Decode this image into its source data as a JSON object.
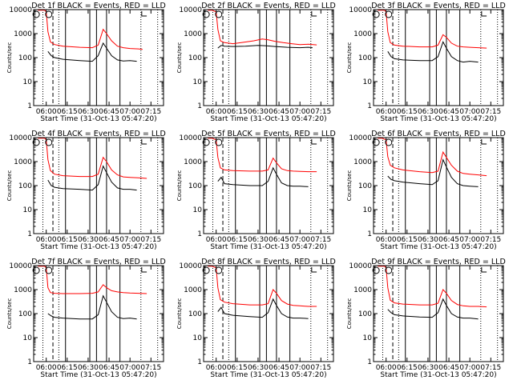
{
  "chart_data": [
    {
      "type": "line",
      "title": "Det 1f BLACK = Events, RED = LLD",
      "xlabel": "Start Time (31-Oct-13 05:47:20)",
      "ylabel": "Counts/sec",
      "x_ticks": [
        "06:00",
        "06:15",
        "06:30",
        "06:45",
        "07:00",
        "07:15"
      ],
      "y_ticks": [
        "1",
        "10",
        "100",
        "1000",
        "10000"
      ],
      "ylim": [
        1,
        10000
      ],
      "y_scale": "log",
      "series": [
        {
          "color": "#ff0000",
          "x": [
            5.9,
            5.98,
            6.0,
            6.02,
            6.05,
            6.1,
            6.2,
            6.4,
            6.55,
            6.62,
            6.68,
            6.72,
            6.78,
            6.85,
            6.92,
            7.0,
            7.1,
            7.15
          ],
          "y": [
            9500,
            9500,
            8000,
            1200,
            450,
            350,
            300,
            270,
            260,
            330,
            1500,
            1000,
            500,
            300,
            260,
            240,
            230,
            220
          ]
        },
        {
          "color": "#000000",
          "x": [
            6.02,
            6.06,
            6.1,
            6.2,
            6.4,
            6.55,
            6.62,
            6.68,
            6.72,
            6.78,
            6.85,
            6.92,
            7.0,
            7.08
          ],
          "y": [
            180,
            120,
            100,
            85,
            75,
            70,
            120,
            400,
            250,
            120,
            80,
            72,
            75,
            70
          ]
        }
      ]
    },
    {
      "type": "line",
      "title": "Det 2f BLACK = Events, RED = LLD",
      "xlabel": "Start Time (31-Oct-13 05:47:20)",
      "ylabel": "Counts/sec",
      "x_ticks": [
        "06:00",
        "06:15",
        "06:30",
        "06:45",
        "07:00",
        "07:15"
      ],
      "y_ticks": [
        "1",
        "10",
        "100",
        "1000",
        "10000"
      ],
      "ylim": [
        1,
        10000
      ],
      "y_scale": "log",
      "series": [
        {
          "color": "#ff0000",
          "x": [
            5.9,
            5.95,
            6.0,
            6.02,
            6.05,
            6.1,
            6.2,
            6.3,
            6.45,
            6.55,
            6.62,
            6.7,
            6.8,
            6.9,
            7.0,
            7.1,
            7.2
          ],
          "y": [
            9500,
            9500,
            8000,
            1500,
            500,
            420,
            380,
            420,
            500,
            600,
            550,
            480,
            420,
            380,
            350,
            360,
            340
          ]
        },
        {
          "color": "#000000",
          "x": [
            6.02,
            6.06,
            6.1,
            6.2,
            6.35,
            6.5,
            6.6,
            6.7,
            6.85,
            7.0,
            7.1,
            7.15
          ],
          "y": [
            250,
            320,
            300,
            290,
            300,
            320,
            310,
            290,
            270,
            260,
            270,
            260
          ]
        }
      ]
    },
    {
      "type": "line",
      "title": "Det 3f BLACK = Events, RED = LLD",
      "xlabel": "Start Time (31-Oct-13 05:47:20)",
      "ylabel": "Counts/sec",
      "x_ticks": [
        "06:00",
        "06:15",
        "06:30",
        "06:45",
        "07:00",
        "07:15"
      ],
      "y_ticks": [
        "1",
        "10",
        "100",
        "1000",
        "10000"
      ],
      "ylim": [
        1,
        10000
      ],
      "y_scale": "log",
      "series": [
        {
          "color": "#ff0000",
          "x": [
            5.9,
            5.98,
            6.0,
            6.02,
            6.05,
            6.1,
            6.2,
            6.4,
            6.55,
            6.62,
            6.68,
            6.72,
            6.78,
            6.85,
            6.92,
            7.0,
            7.1,
            7.2
          ],
          "y": [
            9500,
            9500,
            8000,
            1200,
            420,
            330,
            300,
            280,
            280,
            330,
            900,
            700,
            400,
            300,
            280,
            270,
            260,
            250
          ]
        },
        {
          "color": "#000000",
          "x": [
            6.02,
            6.06,
            6.1,
            6.2,
            6.4,
            6.55,
            6.62,
            6.68,
            6.72,
            6.78,
            6.85,
            6.92,
            7.0,
            7.1
          ],
          "y": [
            180,
            110,
            90,
            80,
            75,
            75,
            110,
            450,
            250,
            110,
            75,
            65,
            70,
            65
          ]
        }
      ]
    },
    {
      "type": "line",
      "title": "Det 4f BLACK = Events, RED = LLD",
      "xlabel": "Start Time (31-Oct-13 05:47:20)",
      "ylabel": "Counts/sec",
      "x_ticks": [
        "06:00",
        "06:15",
        "06:30",
        "06:45",
        "07:00",
        "07:15"
      ],
      "y_ticks": [
        "1",
        "10",
        "100",
        "1000",
        "10000"
      ],
      "ylim": [
        1,
        10000
      ],
      "y_scale": "log",
      "series": [
        {
          "color": "#ff0000",
          "x": [
            5.9,
            5.98,
            6.0,
            6.02,
            6.05,
            6.1,
            6.2,
            6.4,
            6.55,
            6.62,
            6.68,
            6.72,
            6.78,
            6.85,
            6.92,
            7.0,
            7.1,
            7.2
          ],
          "y": [
            9500,
            9500,
            8000,
            1200,
            420,
            300,
            260,
            240,
            240,
            300,
            1500,
            1000,
            450,
            280,
            230,
            220,
            210,
            200
          ]
        },
        {
          "color": "#000000",
          "x": [
            6.02,
            6.06,
            6.1,
            6.2,
            6.4,
            6.55,
            6.62,
            6.68,
            6.72,
            6.78,
            6.85,
            6.92,
            7.0,
            7.08
          ],
          "y": [
            170,
            100,
            85,
            75,
            70,
            65,
            110,
            650,
            350,
            140,
            80,
            70,
            70,
            65
          ]
        }
      ]
    },
    {
      "type": "line",
      "title": "Det 5f BLACK = Events, RED = LLD",
      "xlabel": "Start Time (31-Oct-13 05:47:20)",
      "ylabel": "Counts/sec",
      "x_ticks": [
        "06:00",
        "06:15",
        "06:30",
        "06:45",
        "07:00",
        "07:15"
      ],
      "y_ticks": [
        "1",
        "10",
        "100",
        "1000",
        "10000"
      ],
      "ylim": [
        1,
        10000
      ],
      "y_scale": "log",
      "series": [
        {
          "color": "#ff0000",
          "x": [
            5.9,
            5.95,
            6.0,
            6.02,
            6.05,
            6.1,
            6.2,
            6.4,
            6.55,
            6.62,
            6.68,
            6.72,
            6.78,
            6.85,
            6.92,
            7.0,
            7.1,
            7.2
          ],
          "y": [
            9500,
            9500,
            8000,
            1500,
            550,
            450,
            420,
            400,
            400,
            450,
            1400,
            900,
            500,
            420,
            400,
            390,
            380,
            380
          ]
        },
        {
          "color": "#000000",
          "x": [
            6.02,
            6.06,
            6.1,
            6.2,
            6.4,
            6.55,
            6.62,
            6.68,
            6.72,
            6.78,
            6.85,
            6.92,
            7.0,
            7.1
          ],
          "y": [
            150,
            220,
            120,
            110,
            100,
            100,
            150,
            550,
            300,
            130,
            100,
            95,
            95,
            90
          ]
        }
      ]
    },
    {
      "type": "line",
      "title": "Det 6f BLACK = Events, RED = LLD",
      "xlabel": "Start Time (31-Oct-13 05:47:20)",
      "ylabel": "Counts/sec",
      "x_ticks": [
        "06:00",
        "06:15",
        "06:30",
        "06:45",
        "07:00",
        "07:15"
      ],
      "y_ticks": [
        "1",
        "10",
        "100",
        "1000",
        "10000"
      ],
      "ylim": [
        1,
        10000
      ],
      "y_scale": "log",
      "series": [
        {
          "color": "#ff0000",
          "x": [
            5.9,
            5.95,
            6.0,
            6.02,
            6.05,
            6.1,
            6.2,
            6.4,
            6.55,
            6.62,
            6.68,
            6.72,
            6.78,
            6.85,
            6.92,
            7.0,
            7.1,
            7.2
          ],
          "y": [
            9500,
            9500,
            8000,
            1600,
            700,
            550,
            450,
            380,
            350,
            400,
            2500,
            1500,
            700,
            400,
            320,
            300,
            280,
            260
          ]
        },
        {
          "color": "#000000",
          "x": [
            6.02,
            6.06,
            6.1,
            6.2,
            6.4,
            6.55,
            6.62,
            6.68,
            6.72,
            6.78,
            6.85,
            6.92,
            7.0,
            7.1
          ],
          "y": [
            250,
            180,
            160,
            140,
            120,
            110,
            160,
            1200,
            600,
            220,
            120,
            100,
            95,
            90
          ]
        }
      ]
    },
    {
      "type": "line",
      "title": "Det 7f BLACK = Events, RED = LLD",
      "xlabel": "Start Time (31-Oct-13 05:47:20)",
      "ylabel": "Counts/sec",
      "x_ticks": [
        "06:00",
        "06:15",
        "06:30",
        "06:45",
        "07:00",
        "07:15"
      ],
      "y_ticks": [
        "1",
        "10",
        "100",
        "1000",
        "10000"
      ],
      "ylim": [
        1,
        10000
      ],
      "y_scale": "log",
      "series": [
        {
          "color": "#ff0000",
          "x": [
            5.9,
            5.98,
            6.0,
            6.02,
            6.05,
            6.1,
            6.2,
            6.4,
            6.55,
            6.62,
            6.68,
            6.72,
            6.78,
            6.85,
            6.92,
            7.0,
            7.1,
            7.2
          ],
          "y": [
            9500,
            9500,
            8000,
            1200,
            750,
            700,
            680,
            680,
            700,
            800,
            1600,
            1200,
            900,
            800,
            750,
            720,
            700,
            680
          ]
        },
        {
          "color": "#000000",
          "x": [
            6.02,
            6.06,
            6.1,
            6.2,
            6.4,
            6.55,
            6.62,
            6.68,
            6.72,
            6.78,
            6.85,
            6.92,
            7.0,
            7.08
          ],
          "y": [
            100,
            80,
            70,
            65,
            60,
            60,
            90,
            550,
            300,
            120,
            70,
            62,
            65,
            60
          ]
        }
      ]
    },
    {
      "type": "line",
      "title": "Det 8f BLACK = Events, RED = LLD",
      "xlabel": "Start Time (31-Oct-13 05:47:20)",
      "ylabel": "Counts/sec",
      "x_ticks": [
        "06:00",
        "06:15",
        "06:30",
        "06:45",
        "07:00",
        "07:15"
      ],
      "y_ticks": [
        "1",
        "10",
        "100",
        "1000",
        "10000"
      ],
      "ylim": [
        1,
        10000
      ],
      "y_scale": "log",
      "series": [
        {
          "color": "#ff0000",
          "x": [
            5.9,
            5.95,
            6.0,
            6.02,
            6.05,
            6.1,
            6.2,
            6.4,
            6.55,
            6.62,
            6.68,
            6.72,
            6.78,
            6.85,
            6.92,
            7.0,
            7.1,
            7.2
          ],
          "y": [
            9500,
            9500,
            8000,
            1200,
            380,
            300,
            260,
            230,
            230,
            260,
            1000,
            700,
            350,
            250,
            220,
            210,
            200,
            200
          ]
        },
        {
          "color": "#000000",
          "x": [
            6.02,
            6.06,
            6.1,
            6.2,
            6.4,
            6.55,
            6.62,
            6.68,
            6.72,
            6.78,
            6.85,
            6.92,
            7.0,
            7.1
          ],
          "y": [
            120,
            180,
            100,
            85,
            75,
            70,
            110,
            400,
            220,
            100,
            72,
            65,
            65,
            62
          ]
        }
      ]
    },
    {
      "type": "line",
      "title": "Det 9f BLACK = Events, RED = LLD",
      "xlabel": "Start Time (31-Oct-13 05:47:20)",
      "ylabel": "Counts/sec",
      "x_ticks": [
        "06:00",
        "06:15",
        "06:30",
        "06:45",
        "07:00",
        "07:15"
      ],
      "y_ticks": [
        "1",
        "10",
        "100",
        "1000",
        "10000"
      ],
      "ylim": [
        1,
        10000
      ],
      "y_scale": "log",
      "series": [
        {
          "color": "#ff0000",
          "x": [
            5.9,
            5.98,
            6.0,
            6.02,
            6.05,
            6.1,
            6.2,
            6.4,
            6.55,
            6.62,
            6.68,
            6.72,
            6.78,
            6.85,
            6.92,
            7.0,
            7.1,
            7.2
          ],
          "y": [
            9500,
            9500,
            8000,
            1200,
            360,
            280,
            250,
            230,
            230,
            270,
            1000,
            700,
            350,
            240,
            210,
            200,
            200,
            190
          ]
        },
        {
          "color": "#000000",
          "x": [
            6.02,
            6.06,
            6.1,
            6.2,
            6.4,
            6.55,
            6.62,
            6.68,
            6.72,
            6.78,
            6.85,
            6.92,
            7.0,
            7.1
          ],
          "y": [
            150,
            110,
            90,
            80,
            72,
            70,
            110,
            400,
            220,
            100,
            72,
            65,
            65,
            60
          ]
        }
      ]
    }
  ]
}
